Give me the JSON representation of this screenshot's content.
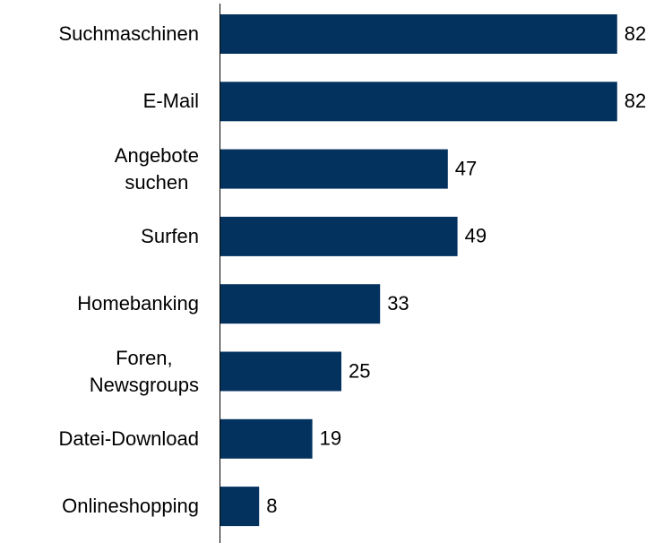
{
  "chart_data": {
    "type": "bar",
    "orientation": "horizontal",
    "categories": [
      "Suchmaschinen",
      "E-Mail",
      "Angebote\nsuchen",
      "Surfen",
      "Homebanking",
      "Foren,\nNewsgroups",
      "Datei-Download",
      "Onlineshopping"
    ],
    "values": [
      82,
      82,
      47,
      49,
      33,
      25,
      19,
      8
    ],
    "color": "#04325f"
  }
}
